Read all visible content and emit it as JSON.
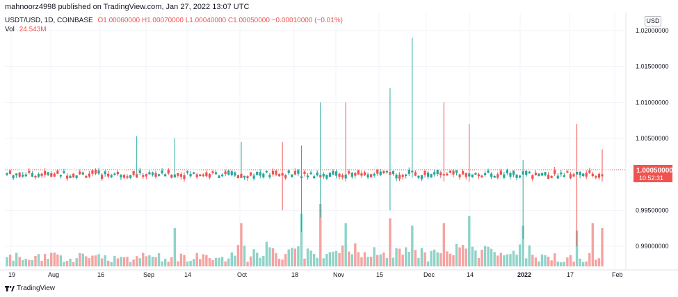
{
  "header": {
    "published": "mahnoorz4998 published on TradingView.com, Jan 27, 2022 13:07 UTC"
  },
  "legend": {
    "symbol": "USDT/USD, 1D, COINBASE",
    "ohlc": "O1.00060000  H1.00070000  L1.00040000  C1.00050000  −0.00010000 (−0.01%)",
    "vol_label": "Vol",
    "vol_value": "24.543M"
  },
  "currency": "USD",
  "price_axis": {
    "labels": [
      "1.02000000",
      "1.01500000",
      "1.01000000",
      "1.00500000",
      "0.99500000",
      "0.99000000"
    ],
    "values": [
      1.02,
      1.015,
      1.01,
      1.005,
      0.995,
      0.99
    ],
    "last_price": "1.00050000",
    "countdown": "10:52:31"
  },
  "time_axis": {
    "labels": [
      "19",
      "Aug",
      "16",
      "Sep",
      "14",
      "Oct",
      "18",
      "Nov",
      "15",
      "Dec",
      "14",
      "2022",
      "17",
      "Feb"
    ]
  },
  "branding": "TradingView",
  "colors": {
    "up": "#26a69a",
    "down": "#ef5350",
    "vol_up": "#8fd3c8",
    "vol_down": "#f5a3a1",
    "last_price_bg": "#ef5350"
  },
  "chart_data": {
    "type": "candlestick",
    "y_range": [
      0.988,
      1.0215
    ],
    "spikes": [
      {
        "dir": "up",
        "high": 1.0053,
        "low": 0.9995
      },
      {
        "dir": "up",
        "high": 1.005,
        "low": 0.9998
      },
      {
        "dir": "up",
        "high": 1.0045,
        "low": 0.9995
      },
      {
        "dir": "down",
        "high": 1.0045,
        "low": 0.995
      },
      {
        "dir": "down",
        "high": 1.004,
        "low": 0.992
      },
      {
        "dir": "up",
        "high": 1.01,
        "low": 0.994
      },
      {
        "dir": "down",
        "high": 1.01,
        "low": 0.999
      },
      {
        "dir": "up",
        "high": 1.012,
        "low": 0.995
      },
      {
        "dir": "up",
        "high": 1.019,
        "low": 0.9995
      },
      {
        "dir": "down",
        "high": 1.01,
        "low": 0.999
      },
      {
        "dir": "down",
        "high": 1.007,
        "low": 0.999
      },
      {
        "dir": "up",
        "high": 1.002,
        "low": 0.991
      },
      {
        "dir": "down",
        "high": 1.007,
        "low": 0.99
      },
      {
        "dir": "down",
        "high": 1.0035,
        "low": 0.999
      }
    ]
  }
}
